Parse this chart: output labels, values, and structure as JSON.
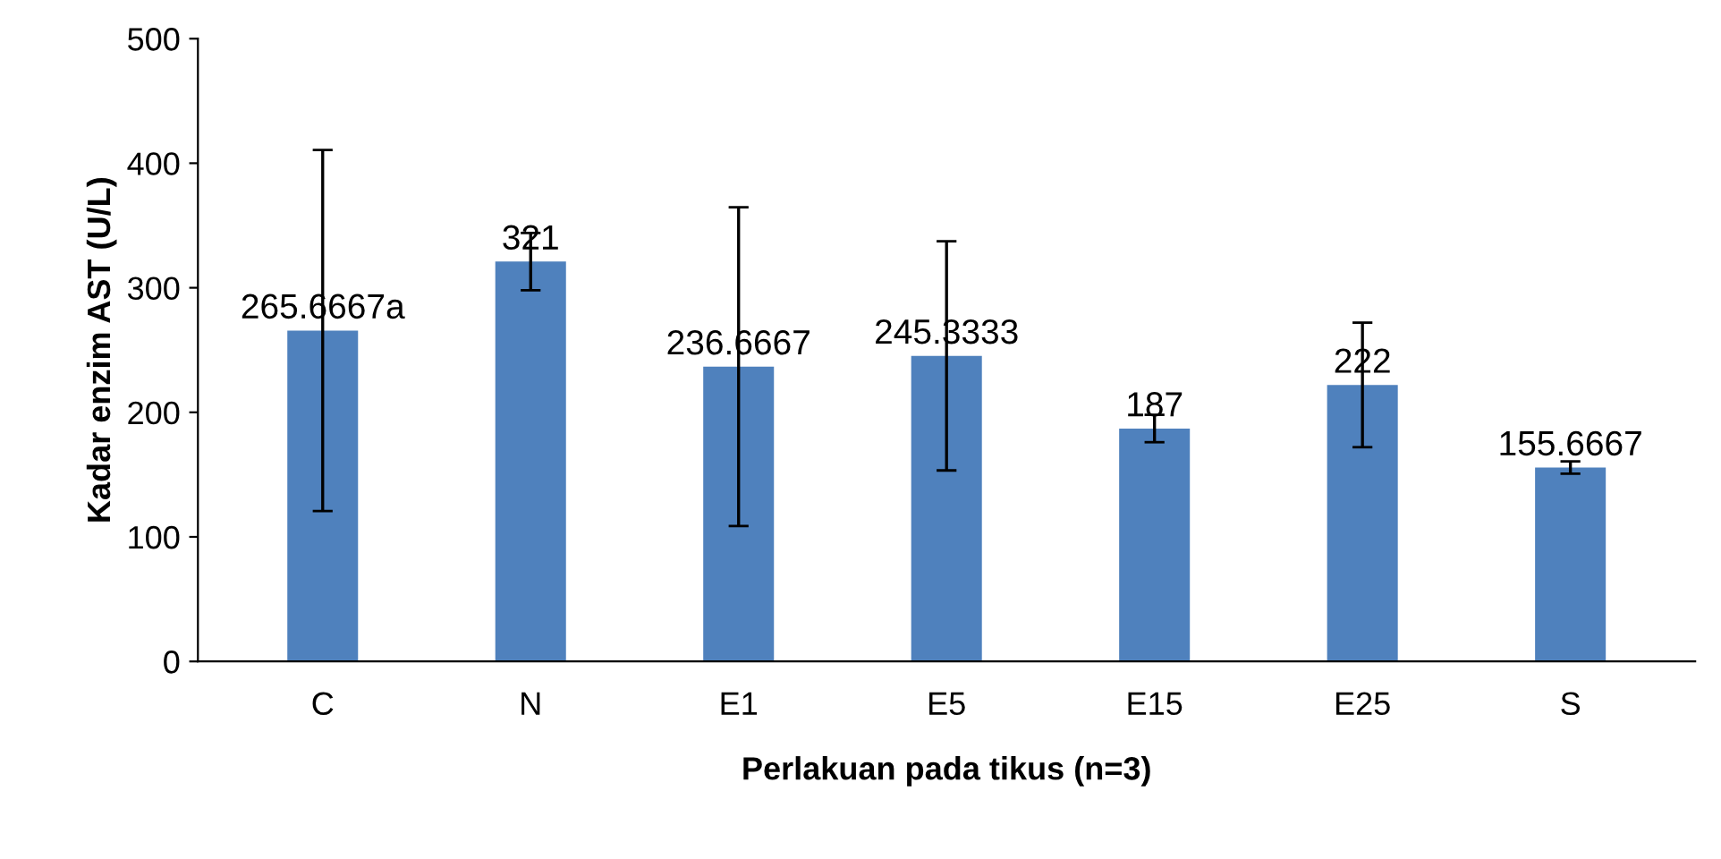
{
  "chart_data": {
    "type": "bar",
    "xlabel": "Perlakuan pada tikus (n=3)",
    "ylabel": "Kadar enzim AST (U/L)",
    "categories": [
      "C",
      "N",
      "E1",
      "E5",
      "E15",
      "E25",
      "S"
    ],
    "values": [
      265.6667,
      321,
      236.6667,
      245.3333,
      187,
      222,
      155.6667
    ],
    "value_labels": [
      "265.6667a",
      "321",
      "236.6667",
      "245.3333",
      "187",
      "222",
      "155.6667"
    ],
    "errors": [
      145,
      23,
      128,
      92,
      11,
      50,
      5
    ],
    "color": "#4f81bd",
    "ylim": [
      0,
      500
    ],
    "yticks": [
      0,
      100,
      200,
      300,
      400,
      500
    ],
    "grid": false
  }
}
